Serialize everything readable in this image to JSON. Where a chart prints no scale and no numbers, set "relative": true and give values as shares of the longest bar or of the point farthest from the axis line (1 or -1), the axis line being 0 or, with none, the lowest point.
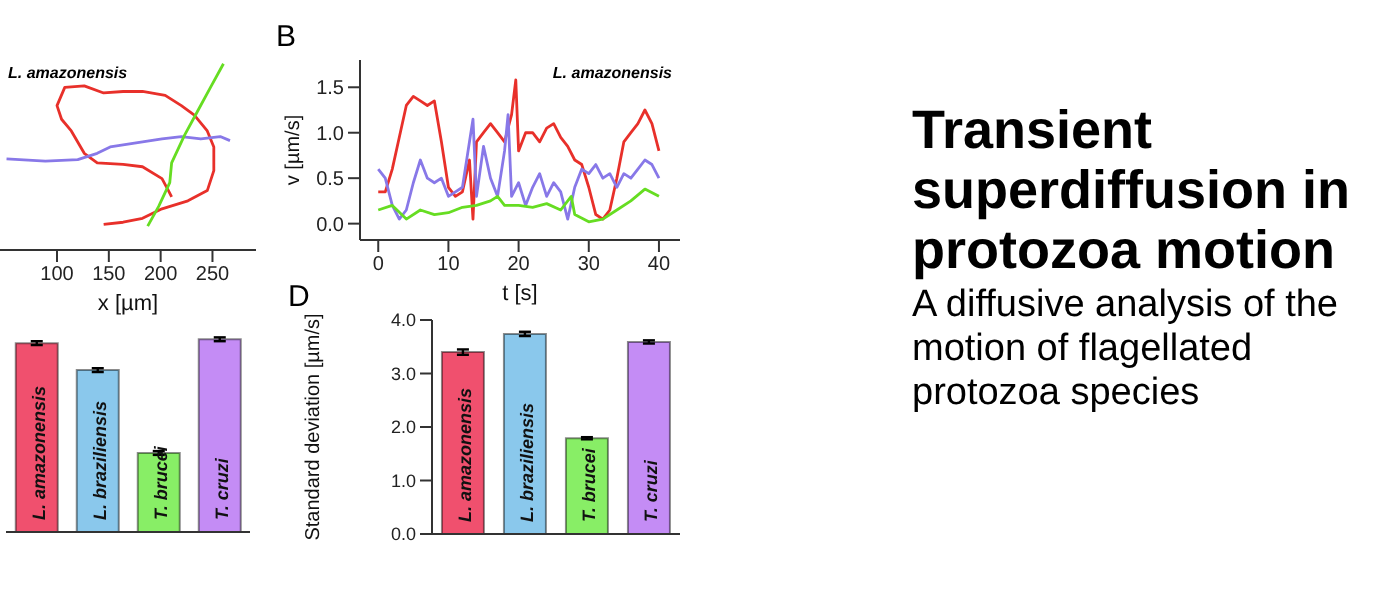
{
  "chart_data": [
    {
      "type": "line",
      "relative": true,
      "tick_labels": "x",
      "xlim": [
        45,
        292
      ],
      "xticks": [
        100,
        150,
        200,
        250
      ],
      "xlabel": "x [µm]",
      "annotations": [
        "L. amazonensis"
      ],
      "series": [
        {
          "color": "#e8302a",
          "x": [
            145,
            163.8,
            182.5,
            201.3,
            226.3,
            245,
            251.3,
            251.3,
            245,
            232.5,
            220,
            204.4,
            182.5,
            163.8,
            145,
            126.3,
            107.5,
            100,
            104.4,
            113.8,
            126.3,
            138.8,
            163.8,
            182.5,
            201.3,
            207.5,
            210.6
          ],
          "values": [
            0.137,
            0.149,
            0.17,
            0.221,
            0.264,
            0.319,
            0.426,
            0.553,
            0.639,
            0.724,
            0.775,
            0.83,
            0.851,
            0.851,
            0.843,
            0.881,
            0.873,
            0.775,
            0.702,
            0.639,
            0.519,
            0.468,
            0.46,
            0.447,
            0.383,
            0.319,
            0.285
          ]
        },
        {
          "color": "#8878e8",
          "x": [
            51.3,
            88.8,
            120,
            138.8,
            151.3,
            176.3,
            201.3,
            220,
            238.8,
            257.5,
            266.9
          ],
          "values": [
            0.489,
            0.477,
            0.485,
            0.519,
            0.553,
            0.575,
            0.596,
            0.609,
            0.596,
            0.609,
            0.587
          ]
        },
        {
          "color": "#66dd22",
          "x": [
            187.5,
            198.1,
            208.8,
            210.6,
            223.1,
            235.6,
            248.1,
            260.6
          ],
          "values": [
            0.128,
            0.234,
            0.362,
            0.468,
            0.617,
            0.745,
            0.873,
            1
          ]
        }
      ]
    },
    {
      "type": "line",
      "title": "B",
      "xlabel": "t [s]",
      "ylabel": "v [µm/s]",
      "annotations": [
        "L. amazonensis"
      ],
      "xlim": [
        -2.6,
        43
      ],
      "xticks": [
        0,
        10,
        20,
        30,
        40
      ],
      "ylim": [
        -0.18,
        1.8
      ],
      "yticks": [
        {
          "value": 0,
          "label": "0.0"
        },
        {
          "value": 0.5,
          "label": "0.5"
        },
        {
          "value": 1,
          "label": "1.0"
        },
        {
          "value": 1.5,
          "label": "1.5"
        }
      ],
      "series": [
        {
          "color": "#e8302a",
          "x": [
            0,
            1,
            2,
            3,
            4,
            5,
            6,
            7,
            8,
            9,
            10,
            11,
            12,
            13,
            13.5,
            14,
            15,
            16,
            17,
            18,
            19,
            19.6,
            20,
            21,
            22,
            23,
            24,
            25,
            26,
            27,
            28,
            29,
            30,
            31,
            32,
            33,
            34,
            35,
            36,
            37,
            38,
            39,
            40
          ],
          "values": [
            0.35,
            0.35,
            0.6,
            0.95,
            1.3,
            1.4,
            1.35,
            1.3,
            1.35,
            0.9,
            0.4,
            0.3,
            0.35,
            0.7,
            0.05,
            0.9,
            1,
            1.1,
            1,
            0.9,
            1.2,
            1.58,
            0.8,
            1,
            1,
            0.9,
            1.05,
            1.1,
            0.95,
            0.85,
            0.7,
            0.65,
            0.4,
            0.1,
            0.05,
            0.15,
            0.5,
            0.9,
            1,
            1.1,
            1.25,
            1.1,
            0.8
          ]
        },
        {
          "color": "#8878e8",
          "x": [
            0,
            1,
            2,
            3,
            4,
            5,
            6,
            7,
            8,
            9,
            10,
            11,
            12,
            13,
            13.5,
            14,
            15,
            16,
            17,
            18,
            18.5,
            19,
            20,
            21,
            22,
            23,
            24,
            25,
            26,
            27,
            28,
            29,
            30,
            31,
            32,
            33,
            34,
            35,
            36,
            37,
            38,
            39,
            40
          ],
          "values": [
            0.6,
            0.5,
            0.2,
            0.05,
            0.15,
            0.45,
            0.7,
            0.5,
            0.45,
            0.5,
            0.3,
            0.35,
            0.4,
            0.9,
            1.15,
            0.3,
            0.85,
            0.5,
            0.3,
            0.8,
            1.2,
            0.3,
            0.45,
            0.2,
            0.4,
            0.55,
            0.3,
            0.45,
            0.35,
            0.05,
            0.4,
            0.6,
            0.55,
            0.65,
            0.5,
            0.55,
            0.4,
            0.55,
            0.5,
            0.6,
            0.7,
            0.65,
            0.5
          ]
        },
        {
          "color": "#66dd22",
          "x": [
            0,
            2,
            4,
            6,
            8,
            10,
            12,
            14,
            16,
            17,
            18,
            20,
            22,
            24,
            26,
            27.5,
            28,
            30,
            32,
            34,
            36,
            38,
            40
          ],
          "values": [
            0.15,
            0.2,
            0.05,
            0.15,
            0.1,
            0.12,
            0.18,
            0.2,
            0.25,
            0.3,
            0.2,
            0.2,
            0.18,
            0.22,
            0.15,
            0.3,
            0.1,
            0.02,
            0.05,
            0.15,
            0.25,
            0.38,
            0.3
          ]
        }
      ]
    },
    {
      "type": "bar",
      "relative": true,
      "categories": [
        "L. amazonensis",
        "L. braziliensis",
        "T. brucei",
        "T. cruzi"
      ],
      "values": [
        0.98,
        0.84,
        0.41,
        1
      ],
      "errors": [
        0.01,
        0.01,
        0.01,
        0.01
      ],
      "colors": [
        "#f0506e",
        "#8ac8ec",
        "#88ee66",
        "#c48cf5"
      ]
    },
    {
      "type": "bar",
      "title": "D",
      "ylabel": "Standard deviation [µm/s]",
      "categories": [
        "L. amazonensis",
        "L. braziliensis",
        "T. brucei",
        "T. cruzi"
      ],
      "values": [
        3.4,
        3.74,
        1.79,
        3.59
      ],
      "errors": [
        0.05,
        0.04,
        0.02,
        0.03
      ],
      "colors": [
        "#f0506e",
        "#8ac8ec",
        "#88ee66",
        "#c48cf5"
      ],
      "ylim": [
        0,
        4
      ],
      "yticks": [
        {
          "value": 0,
          "label": "0.0"
        },
        {
          "value": 1,
          "label": "1.0"
        },
        {
          "value": 2,
          "label": "2.0"
        },
        {
          "value": 3,
          "label": "3.0"
        },
        {
          "value": 4,
          "label": "4.0"
        }
      ]
    },
    {
      "type": "other",
      "title": "Transient superdiffusion in protozoa motion",
      "subtitle": "A diffusive analysis of the motion of flagellated protozoa species"
    }
  ]
}
